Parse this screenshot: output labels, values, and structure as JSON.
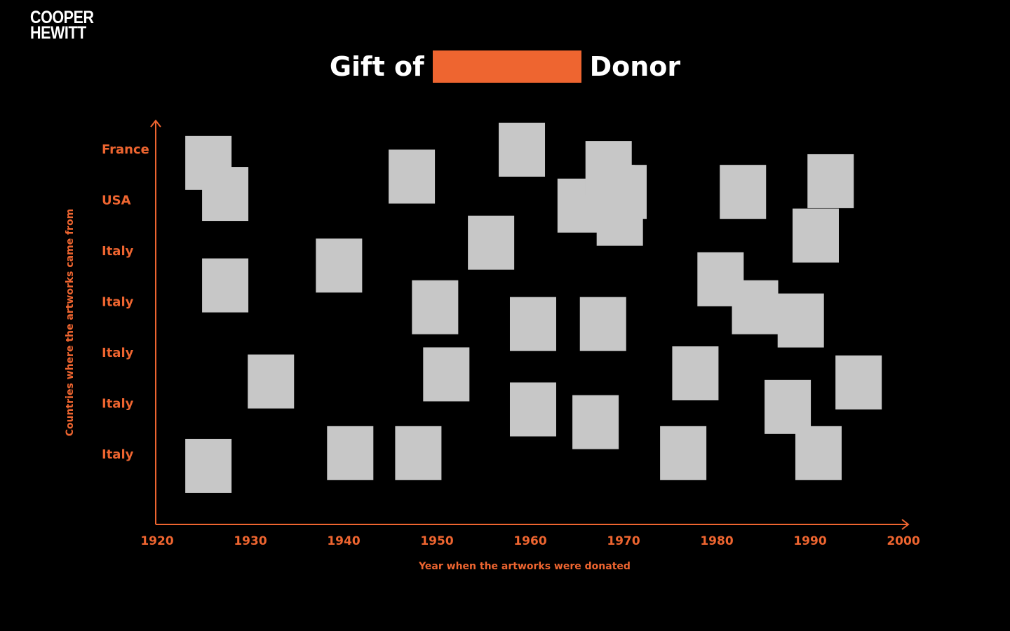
{
  "logo": {
    "line1": "COOPER",
    "line2": "HEWITT"
  },
  "title": {
    "prefix": "Gift of",
    "suffix": "Donor",
    "redaction_color": "#ee6530"
  },
  "colors": {
    "background": "#000000",
    "accent": "#ee6530",
    "marker": "#c7c7c7",
    "title_text": "#ffffff"
  },
  "chart_data": {
    "type": "scatter",
    "xlabel": "Year when the artworks were donated",
    "ylabel": "Countries where the artworks came from",
    "xlim": [
      1920,
      2000
    ],
    "x_ticks": [
      "1920",
      "1930",
      "1940",
      "1950",
      "1960",
      "1970",
      "1980",
      "1990",
      "2000"
    ],
    "y_categories": [
      "France",
      "USA",
      "Italy",
      "Italy",
      "Italy",
      "Italy",
      "Italy"
    ],
    "grid": false,
    "marker": "square thumbnail",
    "points": [
      {
        "x": 1925.5,
        "y": 0.26
      },
      {
        "x": 1927.3,
        "y": 0.87
      },
      {
        "x": 1927.3,
        "y": 2.67
      },
      {
        "x": 1925.5,
        "y": 6.22
      },
      {
        "x": 1932.2,
        "y": 4.56
      },
      {
        "x": 1939.5,
        "y": 2.28
      },
      {
        "x": 1940.7,
        "y": 5.97
      },
      {
        "x": 1947.3,
        "y": 0.53
      },
      {
        "x": 1949.8,
        "y": 3.1
      },
      {
        "x": 1948.0,
        "y": 5.97
      },
      {
        "x": 1951.0,
        "y": 4.42
      },
      {
        "x": 1955.8,
        "y": 1.83
      },
      {
        "x": 1959.1,
        "y": 0.0
      },
      {
        "x": 1960.3,
        "y": 3.43
      },
      {
        "x": 1960.3,
        "y": 5.11
      },
      {
        "x": 1965.4,
        "y": 1.1
      },
      {
        "x": 1967.8,
        "y": 3.43
      },
      {
        "x": 1967.0,
        "y": 5.36
      },
      {
        "x": 1968.7,
        "y": 0.83
      },
      {
        "x": 1968.4,
        "y": 0.36
      },
      {
        "x": 1970.0,
        "y": 0.83
      },
      {
        "x": 1969.6,
        "y": 1.36
      },
      {
        "x": 1977.7,
        "y": 4.4
      },
      {
        "x": 1976.4,
        "y": 5.97
      },
      {
        "x": 1980.4,
        "y": 2.55
      },
      {
        "x": 1982.8,
        "y": 0.83
      },
      {
        "x": 1984.1,
        "y": 3.1
      },
      {
        "x": 1987.6,
        "y": 5.06
      },
      {
        "x": 1989.0,
        "y": 3.36
      },
      {
        "x": 1990.6,
        "y": 1.69
      },
      {
        "x": 1992.2,
        "y": 0.62
      },
      {
        "x": 1990.9,
        "y": 5.97
      },
      {
        "x": 1995.2,
        "y": 4.58
      }
    ]
  }
}
